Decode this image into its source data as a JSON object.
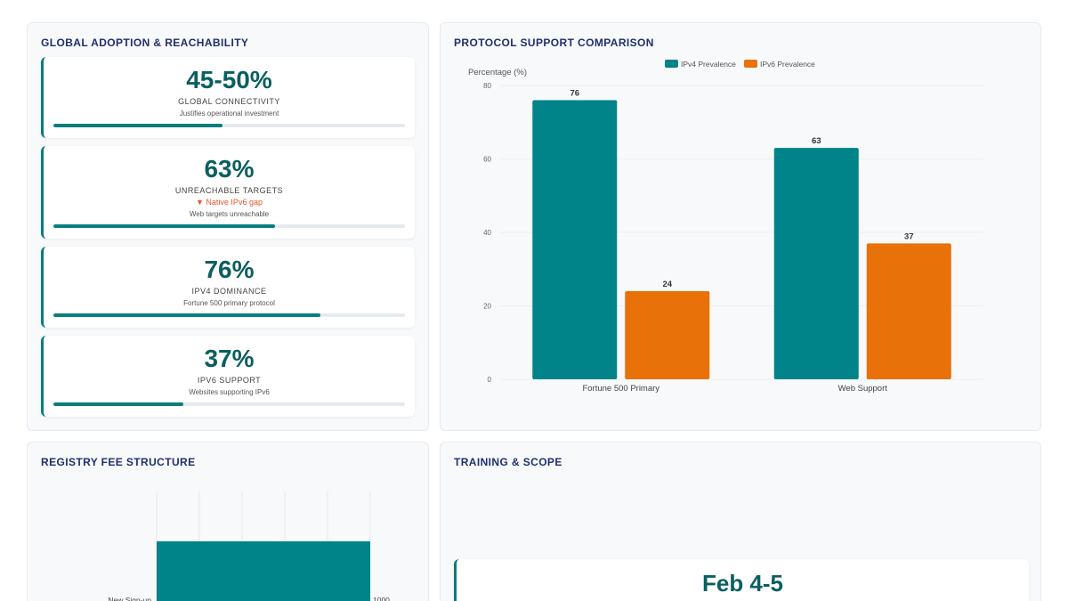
{
  "adoption": {
    "title": "GLOBAL ADOPTION & REACHABILITY",
    "stats": [
      {
        "value": "45-50%",
        "label": "GLOBAL CONNECTIVITY",
        "sub": "Justifies operational investment",
        "progress": 0.48
      },
      {
        "value": "63%",
        "label": "UNREACHABLE TARGETS",
        "alert": "▼ Native IPv6 gap",
        "sub": "Web targets unreachable",
        "progress": 0.63
      },
      {
        "value": "76%",
        "label": "IPV4 DOMINANCE",
        "sub": "Fortune 500 primary protocol",
        "progress": 0.76
      },
      {
        "value": "37%",
        "label": "IPV6 SUPPORT",
        "sub": "Websites supporting IPv6",
        "progress": 0.37
      }
    ]
  },
  "protocol": {
    "title": "PROTOCOL SUPPORT COMPARISON"
  },
  "fees": {
    "title": "REGISTRY FEE STRUCTURE"
  },
  "training": {
    "title": "TRAINING & SCOPE",
    "date": "Feb 4-5"
  },
  "chart_data": [
    {
      "type": "bar",
      "title": "",
      "xlabel": "",
      "ylabel": "Percentage (%)",
      "categories": [
        "Fortune 500 Primary",
        "Web Support"
      ],
      "series": [
        {
          "name": "IPv4 Prevalence",
          "values": [
            76,
            63
          ],
          "color": "#008489"
        },
        {
          "name": "IPv6 Prevalence",
          "values": [
            24,
            37
          ],
          "color": "#e8710a"
        }
      ],
      "ylim": [
        0,
        80
      ],
      "yticks": [
        "0",
        "20",
        "40",
        "60",
        "80"
      ],
      "grid": true,
      "legend": "top-center",
      "data_labels": true
    },
    {
      "type": "bar",
      "orientation": "horizontal",
      "categories": [
        "New Sign-up"
      ],
      "values": [
        1000
      ],
      "value_labels": [
        "1000"
      ],
      "color": "#008489",
      "grid": true
    }
  ]
}
